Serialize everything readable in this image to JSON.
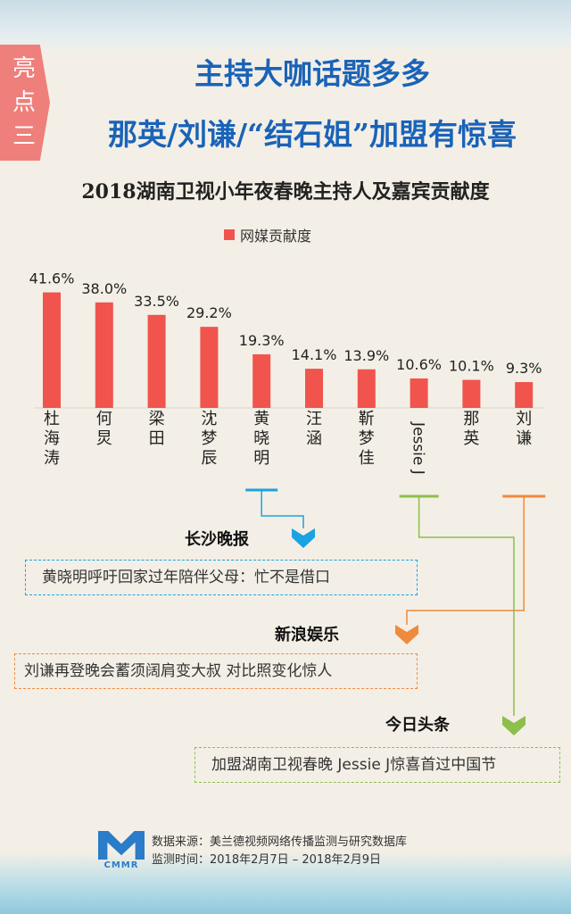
{
  "badge": {
    "lines": [
      "亮",
      "点",
      "三"
    ]
  },
  "header": {
    "title_line1": "主持大咖话题多多",
    "title_line2": "那英/刘谦/“结石姐”加盟有惊喜"
  },
  "chart_data": {
    "type": "bar",
    "title": "2018湖南卫视小年夜春晚主持人及嘉宾贡献度",
    "legend": "网媒贡献度",
    "legend_position": "top",
    "categories": [
      "杜海涛",
      "何炅",
      "梁田",
      "沈梦辰",
      "黄晓明",
      "汪涵",
      "靳梦佳",
      "Jessie J",
      "那英",
      "刘谦"
    ],
    "values": [
      41.6,
      38.0,
      33.5,
      29.2,
      19.3,
      14.1,
      13.9,
      10.6,
      10.1,
      9.3
    ],
    "value_labels": [
      "41.6%",
      "38.0%",
      "33.5%",
      "29.2%",
      "19.3%",
      "14.1%",
      "13.9%",
      "10.6%",
      "10.1%",
      "9.3%"
    ],
    "unit": "%",
    "ylim": [
      0,
      45
    ],
    "grid": false,
    "color": "#f0544d"
  },
  "callouts": [
    {
      "source": "长沙晚报",
      "headline": "黄晓明呼吁回家过年陪伴父母：忙不是借口",
      "color": "#1aa3e0",
      "target": "黄晓明"
    },
    {
      "source": "新浪娱乐",
      "headline": "刘谦再登晚会蓄须阔肩变大叔  对比照变化惊人",
      "color": "#f08a3c",
      "target": "刘谦"
    },
    {
      "source": "今日头条",
      "headline": "加盟湖南卫视春晚 Jessie J惊喜首过中国节",
      "color": "#8dbf4c",
      "target": "Jessie J"
    }
  ],
  "footer": {
    "logo_text": "CMMR",
    "source_line": "数据来源：美兰德视频网络传播监测与研究数据库",
    "time_line": "监测时间：2018年2月7日 – 2018年2月9日"
  }
}
